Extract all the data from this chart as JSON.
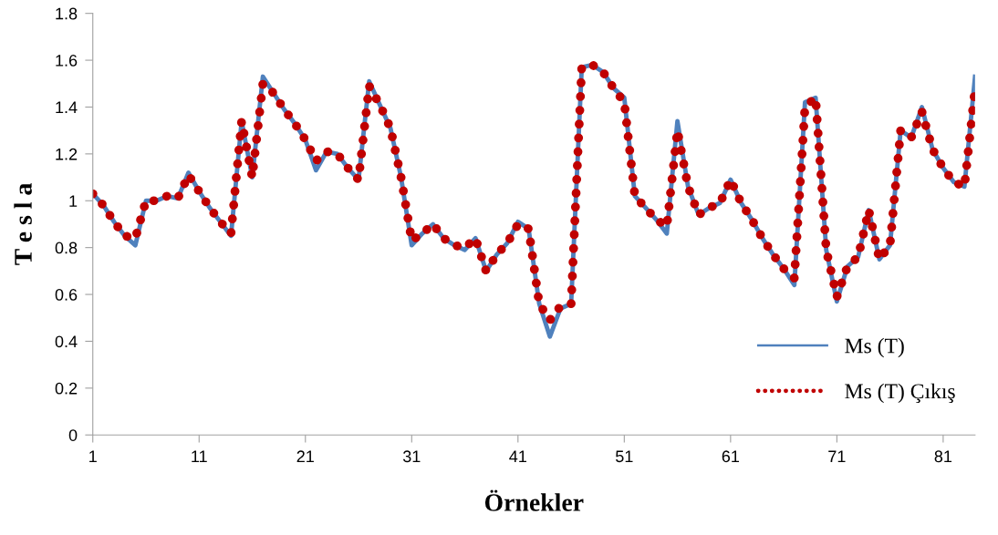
{
  "chart_data": {
    "type": "line",
    "xlabel": "Örnekler",
    "ylabel": "T e s l a",
    "x": [
      1,
      2,
      3,
      4,
      5,
      6,
      7,
      8,
      9,
      10,
      11,
      12,
      13,
      14,
      15,
      16,
      17,
      18,
      19,
      20,
      21,
      22,
      23,
      24,
      25,
      26,
      27,
      28,
      29,
      30,
      31,
      32,
      33,
      34,
      35,
      36,
      37,
      38,
      39,
      40,
      41,
      42,
      43,
      44,
      45,
      46,
      47,
      48,
      49,
      50,
      51,
      52,
      53,
      54,
      55,
      56,
      57,
      58,
      59,
      60,
      61,
      62,
      63,
      64,
      65,
      66,
      67,
      68,
      69,
      70,
      71,
      72,
      73,
      74,
      75,
      76,
      77,
      78,
      79,
      80,
      81,
      82,
      83,
      84
    ],
    "series": [
      {
        "name": "Ms (T)",
        "color": "#4f81bd",
        "line_style": "solid",
        "values": [
          1.03,
          0.98,
          0.91,
          0.85,
          0.81,
          1.0,
          1.0,
          1.02,
          1.01,
          1.12,
          1.04,
          0.97,
          0.91,
          0.85,
          1.34,
          1.1,
          1.53,
          1.46,
          1.39,
          1.33,
          1.26,
          1.13,
          1.21,
          1.2,
          1.14,
          1.09,
          1.51,
          1.41,
          1.31,
          1.1,
          0.81,
          0.86,
          0.9,
          0.84,
          0.81,
          0.79,
          0.84,
          0.7,
          0.77,
          0.82,
          0.91,
          0.88,
          0.56,
          0.42,
          0.54,
          0.56,
          1.57,
          1.58,
          1.55,
          1.48,
          1.44,
          1.02,
          0.97,
          0.92,
          0.86,
          1.34,
          1.06,
          0.94,
          0.97,
          0.99,
          1.09,
          0.99,
          0.92,
          0.84,
          0.77,
          0.71,
          0.64,
          1.42,
          1.44,
          0.79,
          0.57,
          0.72,
          0.76,
          0.96,
          0.75,
          0.81,
          1.3,
          1.27,
          1.4,
          1.22,
          1.14,
          1.08,
          1.06,
          1.53
        ]
      },
      {
        "name": "Ms (T) Çıkış",
        "color": "#c00000",
        "line_style": "dotted",
        "values": [
          1.03,
          0.98,
          0.91,
          0.85,
          0.84,
          1.0,
          1.0,
          1.02,
          1.01,
          1.11,
          1.04,
          0.97,
          0.91,
          0.86,
          1.34,
          1.1,
          1.5,
          1.46,
          1.39,
          1.33,
          1.26,
          1.17,
          1.21,
          1.2,
          1.14,
          1.09,
          1.49,
          1.41,
          1.31,
          1.1,
          0.83,
          0.86,
          0.9,
          0.84,
          0.81,
          0.8,
          0.84,
          0.7,
          0.77,
          0.82,
          0.9,
          0.88,
          0.56,
          0.49,
          0.55,
          0.56,
          1.57,
          1.58,
          1.55,
          1.48,
          1.42,
          1.02,
          0.97,
          0.92,
          0.89,
          1.3,
          1.06,
          0.94,
          0.97,
          0.99,
          1.09,
          0.99,
          0.92,
          0.84,
          0.77,
          0.71,
          0.67,
          1.4,
          1.44,
          0.79,
          0.59,
          0.72,
          0.76,
          0.96,
          0.75,
          0.81,
          1.3,
          1.27,
          1.38,
          1.22,
          1.14,
          1.08,
          1.06,
          1.48
        ]
      }
    ],
    "xlim": [
      1,
      84
    ],
    "xticks": [
      1,
      11,
      21,
      31,
      41,
      51,
      61,
      71,
      81
    ],
    "ylim": [
      0,
      1.8
    ],
    "yticks": [
      0,
      0.2,
      0.4,
      0.6,
      0.8,
      1,
      1.2,
      1.4,
      1.6,
      1.8
    ],
    "grid": false,
    "legend": "lower right",
    "marker": "none"
  }
}
